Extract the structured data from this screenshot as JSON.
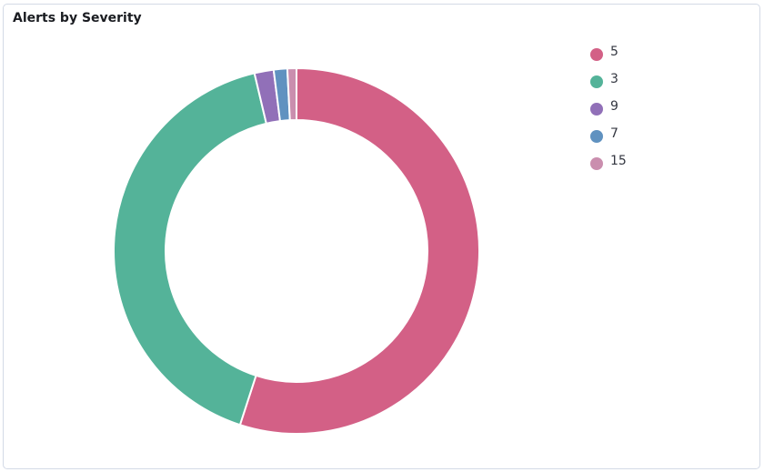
{
  "chart_data": {
    "type": "donut",
    "title": "Alerts by Severity",
    "categories": [
      "5",
      "3",
      "9",
      "7",
      "15"
    ],
    "values": [
      55,
      41.3,
      1.7,
      1.2,
      0.8
    ],
    "colors": [
      "#d36086",
      "#54b399",
      "#9170b8",
      "#6092c0",
      "#ca8eae"
    ],
    "legend": "top-right"
  }
}
